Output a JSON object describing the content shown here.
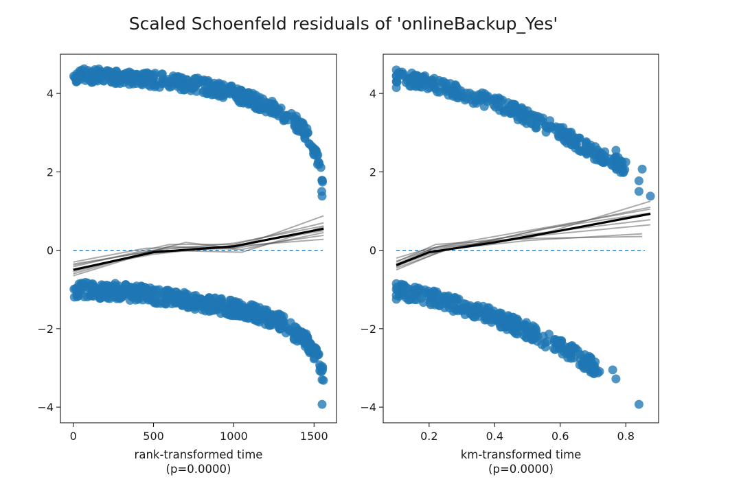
{
  "figure": {
    "title": "Scaled Schoenfeld residuals of 'onlineBackup_Yes'"
  },
  "chart_data": [
    {
      "type": "scatter",
      "xlabel": "rank-transformed time",
      "xlabel_sub": "(p=0.0000)",
      "xlim": [
        -80,
        1640
      ],
      "ylim": [
        -4.4,
        5.0
      ],
      "xticks": [
        0,
        500,
        1000,
        1500
      ],
      "yticks": [
        -4,
        -2,
        0,
        2,
        4
      ],
      "ytick_labels": [
        "−4",
        "−2",
        "0",
        "2",
        "4"
      ],
      "reference_line_y": 0,
      "point_color": "#1f77b4",
      "upper_band": {
        "x_range": [
          0,
          1560
        ],
        "shape": [
          [
            0,
            4.45
          ],
          [
            200,
            4.45
          ],
          [
            500,
            4.35
          ],
          [
            800,
            4.2
          ],
          [
            1000,
            4.0
          ],
          [
            1200,
            3.7
          ],
          [
            1350,
            3.4
          ],
          [
            1450,
            3.0
          ],
          [
            1520,
            2.4
          ],
          [
            1560,
            1.6
          ]
        ],
        "spread": 0.18,
        "count": 420
      },
      "lower_band": {
        "x_range": [
          0,
          1560
        ],
        "shape": [
          [
            0,
            -1.0
          ],
          [
            300,
            -1.05
          ],
          [
            600,
            -1.2
          ],
          [
            900,
            -1.4
          ],
          [
            1100,
            -1.55
          ],
          [
            1300,
            -1.85
          ],
          [
            1450,
            -2.3
          ],
          [
            1530,
            -2.8
          ],
          [
            1560,
            -3.2
          ]
        ],
        "spread": 0.2,
        "count": 520
      },
      "extra_points": [
        [
          1550,
          -3.93
        ],
        [
          1550,
          1.38
        ],
        [
          1548,
          1.5
        ],
        [
          1552,
          1.78
        ],
        [
          1545,
          -3.1
        ],
        [
          1550,
          -3.3
        ]
      ],
      "fit_line": {
        "color": "#000000",
        "x": [
          0,
          500,
          1000,
          1560
        ],
        "y": [
          -0.5,
          -0.05,
          0.1,
          0.55
        ]
      },
      "bootstrap_lines": [
        {
          "x": [
            0,
            500,
            1000,
            1560
          ],
          "y": [
            -0.35,
            -0.02,
            0.05,
            0.88
          ]
        },
        {
          "x": [
            0,
            600,
            1000,
            1560
          ],
          "y": [
            -0.42,
            0.15,
            0.15,
            0.7
          ]
        },
        {
          "x": [
            0,
            500,
            1050,
            1560
          ],
          "y": [
            -0.6,
            0.0,
            -0.05,
            0.6
          ]
        },
        {
          "x": [
            0,
            700,
            1000,
            1560
          ],
          "y": [
            -0.55,
            0.2,
            0.05,
            0.38
          ]
        },
        {
          "x": [
            0,
            500,
            1000,
            1560
          ],
          "y": [
            -0.48,
            -0.1,
            0.12,
            0.5
          ]
        },
        {
          "x": [
            0,
            450,
            1000,
            1560
          ],
          "y": [
            -0.3,
            0.05,
            0.1,
            0.28
          ]
        },
        {
          "x": [
            0,
            600,
            1050,
            1560
          ],
          "y": [
            -0.65,
            0.1,
            0.02,
            0.45
          ]
        },
        {
          "x": [
            0,
            500,
            1000,
            1560
          ],
          "y": [
            -0.38,
            0.0,
            0.18,
            0.62
          ]
        }
      ]
    },
    {
      "type": "scatter",
      "xlabel": "km-transformed time",
      "xlabel_sub": "(p=0.0000)",
      "xlim": [
        0.06,
        0.9
      ],
      "ylim": [
        -4.4,
        5.0
      ],
      "xticks": [
        0.2,
        0.4,
        0.6,
        0.8
      ],
      "yticks": [
        -4,
        -2,
        0,
        2,
        4
      ],
      "ytick_labels": [
        "−4",
        "−2",
        "0",
        "2",
        "4"
      ],
      "reference_line_y": 0,
      "point_color": "#1f77b4",
      "upper_band": {
        "x_range": [
          0.1,
          0.8
        ],
        "shape": [
          [
            0.1,
            4.45
          ],
          [
            0.2,
            4.25
          ],
          [
            0.3,
            4.0
          ],
          [
            0.4,
            3.75
          ],
          [
            0.5,
            3.4
          ],
          [
            0.6,
            3.0
          ],
          [
            0.7,
            2.5
          ],
          [
            0.8,
            2.1
          ]
        ],
        "spread": 0.18,
        "count": 300
      },
      "lower_band": {
        "x_range": [
          0.1,
          0.72
        ],
        "shape": [
          [
            0.1,
            -1.0
          ],
          [
            0.2,
            -1.2
          ],
          [
            0.3,
            -1.45
          ],
          [
            0.4,
            -1.7
          ],
          [
            0.5,
            -2.05
          ],
          [
            0.6,
            -2.45
          ],
          [
            0.7,
            -2.95
          ]
        ],
        "spread": 0.2,
        "count": 320
      },
      "extra_points": [
        [
          0.1,
          4.6
        ],
        [
          0.1,
          4.45
        ],
        [
          0.1,
          4.3
        ],
        [
          0.1,
          4.15
        ],
        [
          0.1,
          -0.85
        ],
        [
          0.1,
          -1.0
        ],
        [
          0.1,
          -1.15
        ],
        [
          0.1,
          -1.25
        ],
        [
          0.76,
          -3.05
        ],
        [
          0.77,
          -3.28
        ],
        [
          0.77,
          2.55
        ],
        [
          0.8,
          2.25
        ],
        [
          0.85,
          2.07
        ],
        [
          0.84,
          1.77
        ],
        [
          0.84,
          1.5
        ],
        [
          0.875,
          1.38
        ],
        [
          0.84,
          -3.93
        ]
      ],
      "fit_line": {
        "color": "#000000",
        "x": [
          0.1,
          0.2,
          0.4,
          0.6,
          0.875
        ],
        "y": [
          -0.38,
          -0.05,
          0.2,
          0.5,
          0.93
        ]
      },
      "bootstrap_lines": [
        {
          "x": [
            0.1,
            0.22,
            0.5,
            0.875
          ],
          "y": [
            -0.3,
            0.15,
            0.3,
            1.25
          ]
        },
        {
          "x": [
            0.1,
            0.25,
            0.5,
            0.875
          ],
          "y": [
            -0.45,
            0.0,
            0.45,
            1.1
          ]
        },
        {
          "x": [
            0.1,
            0.2,
            0.5,
            0.85
          ],
          "y": [
            -0.2,
            0.05,
            0.3,
            0.35
          ]
        },
        {
          "x": [
            0.1,
            0.25,
            0.5,
            0.85
          ],
          "y": [
            -0.5,
            0.02,
            0.25,
            0.42
          ]
        },
        {
          "x": [
            0.1,
            0.22,
            0.5,
            0.875
          ],
          "y": [
            -0.35,
            0.08,
            0.4,
            0.78
          ]
        },
        {
          "x": [
            0.1,
            0.2,
            0.55,
            0.875
          ],
          "y": [
            -0.4,
            -0.1,
            0.55,
            0.95
          ]
        },
        {
          "x": [
            0.1,
            0.23,
            0.5,
            0.875
          ],
          "y": [
            -0.28,
            0.1,
            0.5,
            1.05
          ]
        },
        {
          "x": [
            0.1,
            0.2,
            0.5,
            0.875
          ],
          "y": [
            -0.42,
            0.0,
            0.35,
            0.65
          ]
        }
      ]
    }
  ]
}
